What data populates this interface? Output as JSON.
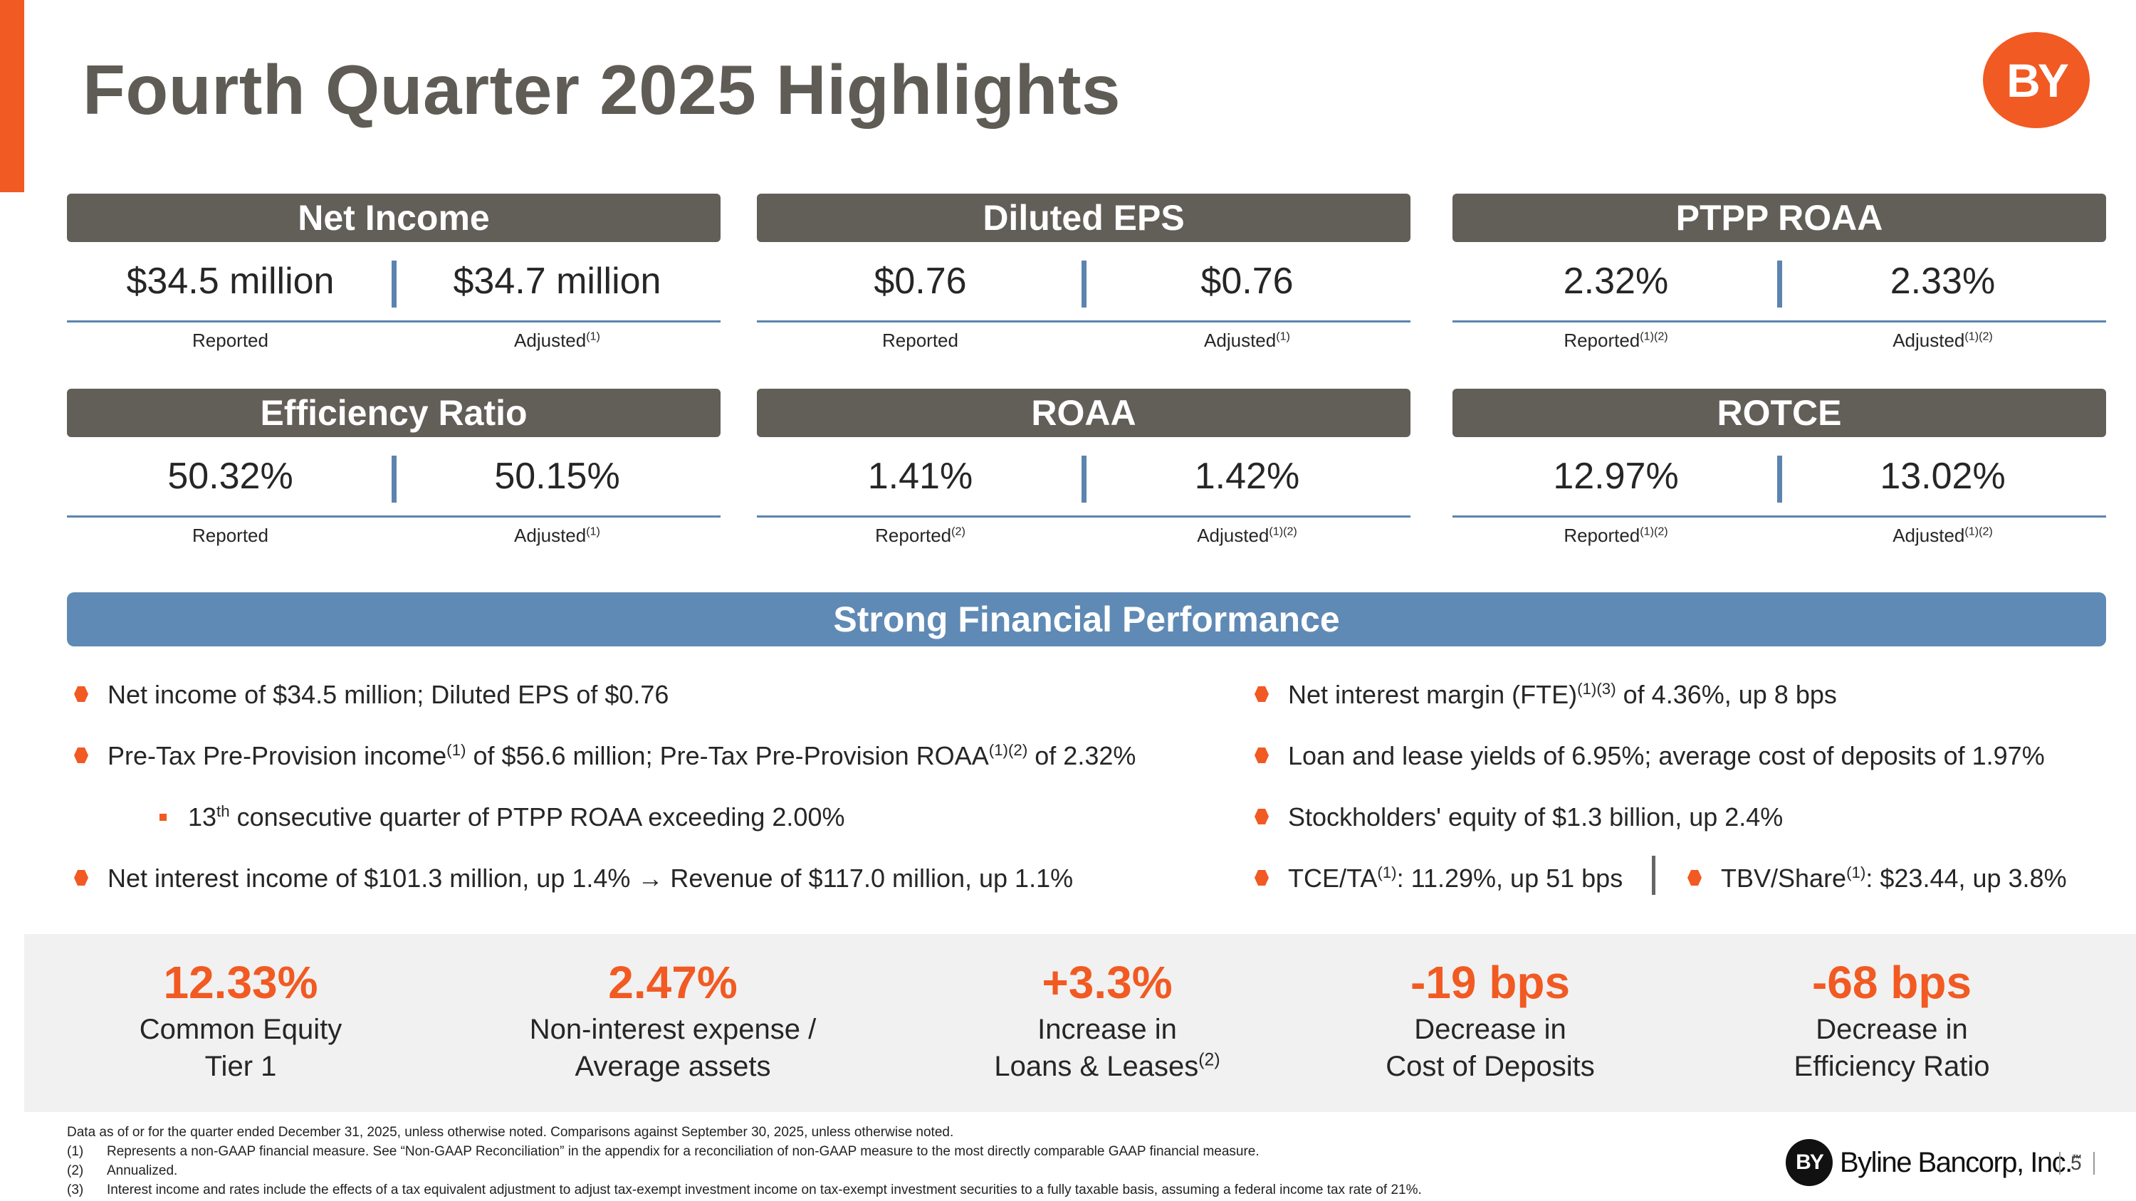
{
  "page": {
    "title": "Fourth Quarter 2025 Highlights",
    "logo_text": "BY",
    "accent_color": "#f15a22",
    "header_gray": "#625e58",
    "banner_blue": "#5f8ab5"
  },
  "metrics": [
    {
      "title": "Net Income",
      "reported": "$34.5 million",
      "adjusted": "$34.7 million",
      "reported_label": "Reported",
      "reported_sup": "",
      "adjusted_label": "Adjusted",
      "adjusted_sup": "(1)"
    },
    {
      "title": "Diluted EPS",
      "reported": "$0.76",
      "adjusted": "$0.76",
      "reported_label": "Reported",
      "reported_sup": "",
      "adjusted_label": "Adjusted",
      "adjusted_sup": "(1)"
    },
    {
      "title": "PTPP ROAA",
      "reported": "2.32%",
      "adjusted": "2.33%",
      "reported_label": "Reported",
      "reported_sup": "(1)(2)",
      "adjusted_label": "Adjusted",
      "adjusted_sup": "(1)(2)"
    },
    {
      "title": "Efficiency Ratio",
      "reported": "50.32%",
      "adjusted": "50.15%",
      "reported_label": "Reported",
      "reported_sup": "",
      "adjusted_label": "Adjusted",
      "adjusted_sup": "(1)"
    },
    {
      "title": "ROAA",
      "reported": "1.41%",
      "adjusted": "1.42%",
      "reported_label": "Reported",
      "reported_sup": "(2)",
      "adjusted_label": "Adjusted",
      "adjusted_sup": "(1)(2)"
    },
    {
      "title": "ROTCE",
      "reported": "12.97%",
      "adjusted": "13.02%",
      "reported_label": "Reported",
      "reported_sup": "(1)(2)",
      "adjusted_label": "Adjusted",
      "adjusted_sup": "(1)(2)"
    }
  ],
  "banner": {
    "title": "Strong Financial Performance"
  },
  "bullets_left": {
    "b1": "Net income of $34.5 million; Diluted EPS of $0.76",
    "b2_part1": "Pre-Tax Pre-Provision income",
    "b2_sup1": "(1)",
    "b2_part2": " of $56.6 million; Pre-Tax Pre-Provision ROAA",
    "b2_sup2": "(1)(2)",
    "b2_part3": " of 2.32%",
    "sub1_num": "13",
    "sub1_sup": "th",
    "sub1_text": " consecutive quarter of PTPP ROAA exceeding 2.00%",
    "b3_part1": "Net interest income of $101.3 million, up 1.4% ",
    "b3_arrow": "→",
    "b3_part2": " Revenue of $117.0 million, up 1.1%"
  },
  "bullets_right": {
    "b1_part1": "Net interest margin (FTE)",
    "b1_sup": "(1)(3)",
    "b1_part2": " of 4.36%, up 8 bps",
    "b2": "Loan and lease yields of 6.95%; average cost of deposits of 1.97%",
    "b3": "Stockholders' equity of $1.3 billion, up 2.4%",
    "b4_part1": "TCE/TA",
    "b4_sup": "(1)",
    "b4_part2": ": 11.29%, up 51 bps",
    "b5_part1": "TBV/Share",
    "b5_sup": "(1)",
    "b5_part2": ": $23.44, up 3.8%"
  },
  "stats": [
    {
      "value": "12.33%",
      "line1": "Common Equity",
      "line2": "Tier 1",
      "sup": ""
    },
    {
      "value": "2.47%",
      "line1": "Non-interest expense /",
      "line2": "Average assets",
      "sup": ""
    },
    {
      "value": "+3.3%",
      "line1": "Increase in",
      "line2": "Loans & Leases",
      "sup": "(2)"
    },
    {
      "value": "-19 bps",
      "line1": "Decrease in",
      "line2": "Cost of Deposits",
      "sup": ""
    },
    {
      "value": "-68 bps",
      "line1": "Decrease in",
      "line2": "Efficiency Ratio",
      "sup": ""
    }
  ],
  "footnotes": {
    "intro": "Data as of or for the quarter ended December 31, 2025, unless otherwise noted. Comparisons against September 30, 2025, unless otherwise noted.",
    "n1_num": "(1)",
    "n1": "Represents a non-GAAP financial measure.  See “Non-GAAP Reconciliation” in the appendix for a reconciliation of non-GAAP measure to the most directly comparable GAAP financial measure.",
    "n2_num": "(2)",
    "n2": "Annualized.",
    "n3_num": "(3)",
    "n3": "Interest income and rates include the effects of a tax equivalent adjustment to adjust tax-exempt investment income on tax-exempt investment securities to a fully taxable basis, assuming a federal income tax rate of 21%."
  },
  "footer": {
    "brand_mark": "BY",
    "brand_name": "Byline Bancorp, Inc.",
    "trademark": "™",
    "page_number": "5"
  }
}
